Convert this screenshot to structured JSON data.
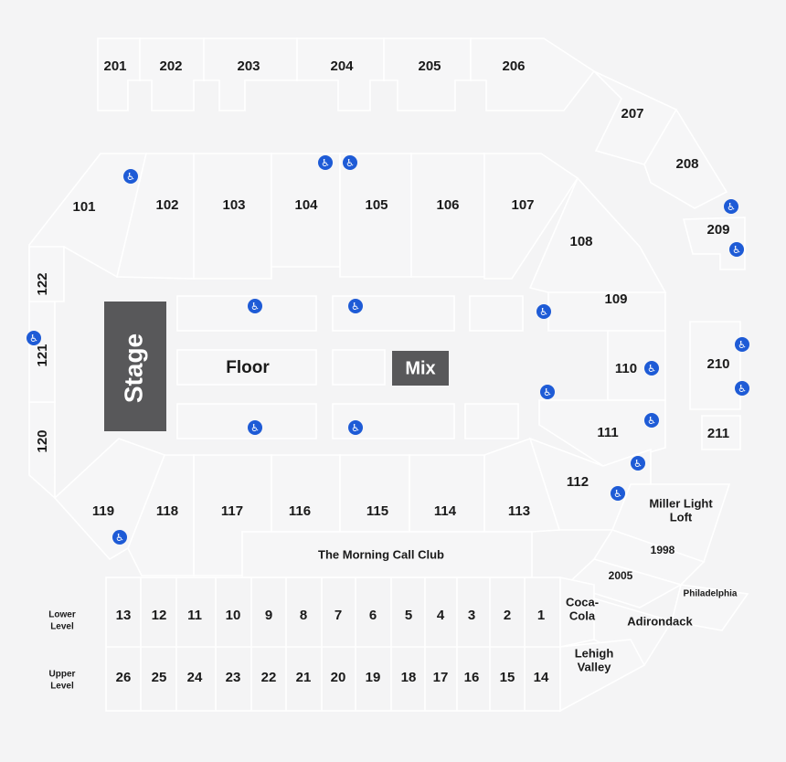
{
  "accent_colors": {
    "accessible": "#1e5bd6",
    "stage": "#58585a",
    "background": "#f4f4f5"
  },
  "upper_200": [
    "201",
    "202",
    "203",
    "204",
    "205",
    "206",
    "207",
    "208",
    "209",
    "210",
    "211"
  ],
  "lower_100": [
    "101",
    "102",
    "103",
    "104",
    "105",
    "106",
    "107",
    "108",
    "109",
    "110",
    "111",
    "112",
    "113",
    "114",
    "115",
    "116",
    "117",
    "118",
    "119",
    "120",
    "121",
    "122"
  ],
  "floor": {
    "stage": "Stage",
    "floor": "Floor",
    "mix": "Mix"
  },
  "club": "The Morning Call Club",
  "suites": {
    "lower_label": "Lower Level",
    "upper_label": "Upper Level",
    "lower": [
      "13",
      "12",
      "11",
      "10",
      "9",
      "8",
      "7",
      "6",
      "5",
      "4",
      "3",
      "2",
      "1"
    ],
    "upper": [
      "26",
      "25",
      "24",
      "23",
      "22",
      "21",
      "20",
      "19",
      "18",
      "17",
      "16",
      "15",
      "14"
    ]
  },
  "named_areas": {
    "miller_light": "Miller Light Loft",
    "y1998": "1998",
    "y2005": "2005",
    "philadelphia": "Philadelphia",
    "coca_cola": "Coca-Cola",
    "adirondack": "Adirondack",
    "lehigh_valley": "Lehigh Valley"
  },
  "icons": {
    "accessible": "wheelchair-icon"
  }
}
